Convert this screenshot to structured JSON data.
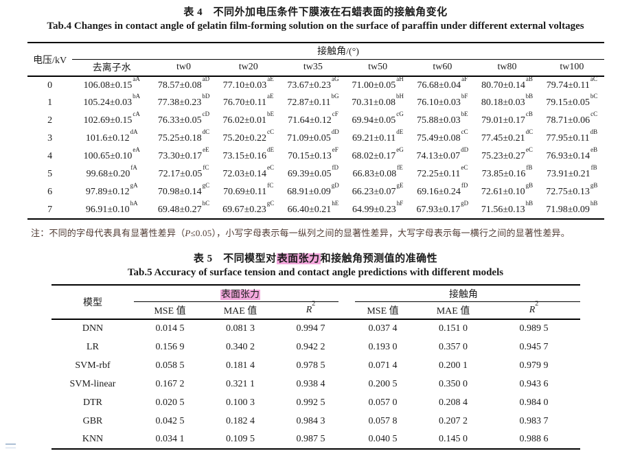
{
  "page": {
    "background": "#ffffff",
    "text_color": "#1b1b1b",
    "highlight_color": "#f3a7dc",
    "note_color": "#4f3a32"
  },
  "table4": {
    "title_zh": "表 4　不同外加电压条件下膜液在石蜡表面的接触角变化",
    "title_en": "Tab.4 Changes in contact angle of gelatin film-forming solution on the surface of paraffin under different external voltages",
    "voltage_header": "电压/kV",
    "group_header": "接触角/(°)",
    "sub_headers": [
      "去离子水",
      "tw0",
      "tw20",
      "tw35",
      "tw50",
      "tw60",
      "tw80",
      "tw100"
    ],
    "rows": [
      {
        "voltage": "0",
        "cells": [
          [
            "106.08±0.15",
            "aA"
          ],
          [
            "78.57±0.08",
            "aD"
          ],
          [
            "77.10±0.03",
            "aE"
          ],
          [
            "73.67±0.23",
            "aG"
          ],
          [
            "71.00±0.05",
            "aH"
          ],
          [
            "76.68±0.04",
            "aF"
          ],
          [
            "80.70±0.14",
            "aB"
          ],
          [
            "79.74±0.11",
            "aC"
          ]
        ]
      },
      {
        "voltage": "1",
        "cells": [
          [
            "105.24±0.03",
            "bA"
          ],
          [
            "77.38±0.23",
            "bD"
          ],
          [
            "76.70±0.11",
            "aE"
          ],
          [
            "72.87±0.11",
            "bG"
          ],
          [
            "70.31±0.08",
            "bH"
          ],
          [
            "76.10±0.03",
            "bF"
          ],
          [
            "80.18±0.03",
            "bB"
          ],
          [
            "79.15±0.05",
            "bC"
          ]
        ]
      },
      {
        "voltage": "2",
        "cells": [
          [
            "102.69±0.15",
            "cA"
          ],
          [
            "76.33±0.05",
            "cD"
          ],
          [
            "76.02±0.01",
            "bE"
          ],
          [
            "71.64±0.12",
            "cF"
          ],
          [
            "69.94±0.05",
            "cG"
          ],
          [
            "75.88±0.03",
            "bE"
          ],
          [
            "79.01±0.17",
            "cB"
          ],
          [
            "78.71±0.06",
            "cC"
          ]
        ]
      },
      {
        "voltage": "3",
        "cells": [
          [
            "101.6±0.12",
            "dA"
          ],
          [
            "75.25±0.18",
            "dC"
          ],
          [
            "75.20±0.22",
            "cC"
          ],
          [
            "71.09±0.05",
            "dD"
          ],
          [
            "69.21±0.11",
            "dE"
          ],
          [
            "75.49±0.08",
            "cC"
          ],
          [
            "77.45±0.21",
            "dC"
          ],
          [
            "77.95±0.11",
            "dB"
          ]
        ]
      },
      {
        "voltage": "4",
        "cells": [
          [
            "100.65±0.10",
            "eA"
          ],
          [
            "73.30±0.17",
            "eE"
          ],
          [
            "73.15±0.16",
            "dE"
          ],
          [
            "70.15±0.13",
            "eF"
          ],
          [
            "68.02±0.17",
            "eG"
          ],
          [
            "74.13±0.07",
            "dD"
          ],
          [
            "75.23±0.27",
            "eC"
          ],
          [
            "76.93±0.14",
            "eB"
          ]
        ]
      },
      {
        "voltage": "5",
        "cells": [
          [
            "99.68±0.20",
            "fA"
          ],
          [
            "72.17±0.05",
            "fC"
          ],
          [
            "72.03±0.14",
            "eC"
          ],
          [
            "69.39±0.05",
            "fD"
          ],
          [
            "66.83±0.08",
            "fE"
          ],
          [
            "72.25±0.11",
            "eC"
          ],
          [
            "73.85±0.16",
            "fB"
          ],
          [
            "73.91±0.21",
            "fB"
          ]
        ]
      },
      {
        "voltage": "6",
        "cells": [
          [
            "97.89±0.12",
            "gA"
          ],
          [
            "70.98±0.14",
            "gC"
          ],
          [
            "70.69±0.11",
            "fC"
          ],
          [
            "68.91±0.09",
            "gD"
          ],
          [
            "66.23±0.07",
            "gE"
          ],
          [
            "69.16±0.24",
            "fD"
          ],
          [
            "72.61±0.10",
            "gB"
          ],
          [
            "72.75±0.13",
            "gB"
          ]
        ]
      },
      {
        "voltage": "7",
        "cells": [
          [
            "96.91±0.10",
            "hA"
          ],
          [
            "69.48±0.27",
            "hC"
          ],
          [
            "69.67±0.23",
            "gC"
          ],
          [
            "66.40±0.21",
            "hE"
          ],
          [
            "64.99±0.23",
            "hF"
          ],
          [
            "67.93±0.17",
            "gD"
          ],
          [
            "71.56±0.13",
            "hB"
          ],
          [
            "71.98±0.09",
            "hB"
          ]
        ]
      }
    ],
    "note_segments": [
      {
        "t": "注：不同的字母代表具有显著性差异（"
      },
      {
        "t": "P",
        "italic": true
      },
      {
        "t": "≤0.05），小写字母表示每一纵列之间的显著性差异，大写字母表示每一横行之间的显著性差异。"
      }
    ]
  },
  "table5": {
    "title_zh_segments": [
      {
        "t": "表 5　不同模型对"
      },
      {
        "t": "表面张力",
        "highlight": true
      },
      {
        "t": "和接触角预测值的准确性"
      }
    ],
    "title_en": "Tab.5 Accuracy of surface tension and contact angle predictions with different models",
    "model_header": "模型",
    "groups": [
      {
        "label": "表面张力",
        "highlight": true
      },
      {
        "label": "接触角",
        "highlight": false
      }
    ],
    "metric_headers": [
      {
        "text": "MSE 值"
      },
      {
        "text": "MAE 值"
      },
      {
        "base": "R",
        "sup": "2",
        "italic": true
      }
    ],
    "rows": [
      {
        "model": "DNN",
        "values": [
          "0.014 5",
          "0.081 3",
          "0.994 7",
          "0.037 4",
          "0.151 0",
          "0.989 5"
        ]
      },
      {
        "model": "LR",
        "values": [
          "0.156 9",
          "0.340 2",
          "0.942 2",
          "0.193 0",
          "0.357 0",
          "0.945 7"
        ]
      },
      {
        "model": "SVM-rbf",
        "values": [
          "0.058 5",
          "0.181 4",
          "0.978 5",
          "0.071 4",
          "0.200 1",
          "0.979 9"
        ]
      },
      {
        "model": "SVM-linear",
        "values": [
          "0.167 2",
          "0.321 1",
          "0.938 4",
          "0.200 5",
          "0.350 0",
          "0.943 6"
        ]
      },
      {
        "model": "DTR",
        "values": [
          "0.020 5",
          "0.100 3",
          "0.992 5",
          "0.057 0",
          "0.208 4",
          "0.984 0"
        ]
      },
      {
        "model": "GBR",
        "values": [
          "0.042 5",
          "0.182 4",
          "0.984 3",
          "0.057 8",
          "0.207 2",
          "0.983 7"
        ]
      },
      {
        "model": "KNN",
        "values": [
          "0.034 1",
          "0.109 5",
          "0.987 5",
          "0.040 5",
          "0.145 0",
          "0.988 6"
        ]
      }
    ]
  }
}
